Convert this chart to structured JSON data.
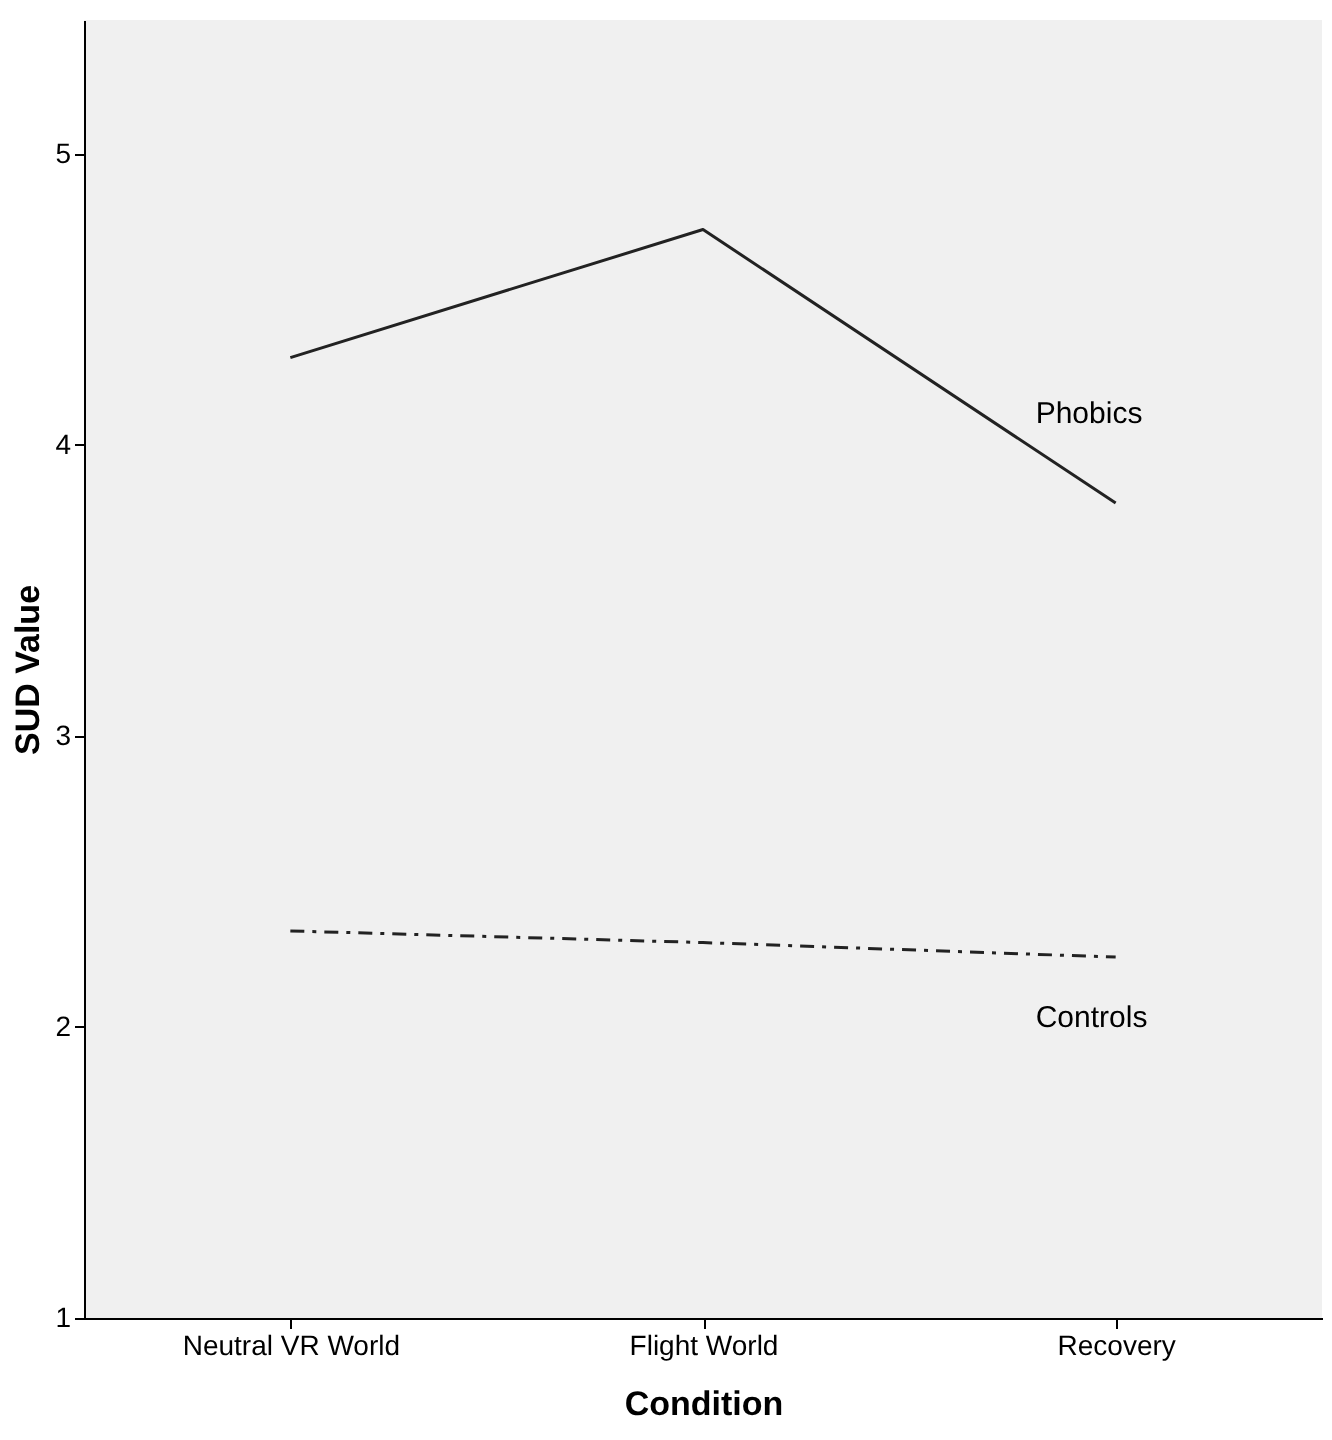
{
  "chart_data": {
    "type": "line",
    "xlabel": "Condition",
    "ylabel": "SUD Value",
    "categories": [
      "Neutral VR World",
      "Flight World",
      "Recovery"
    ],
    "series": [
      {
        "name": "Phobics",
        "color": "#222222",
        "values": [
          4.3,
          4.74,
          3.8
        ],
        "line_style": "solid"
      },
      {
        "name": "Controls",
        "color": "#222222",
        "values": [
          2.33,
          2.29,
          2.24
        ],
        "line_style": "dashed"
      }
    ],
    "ylim": [
      1,
      5.46
    ],
    "yticks": [
      1,
      2,
      3,
      4,
      5
    ],
    "grid": false,
    "legend": false,
    "marker": "none"
  }
}
